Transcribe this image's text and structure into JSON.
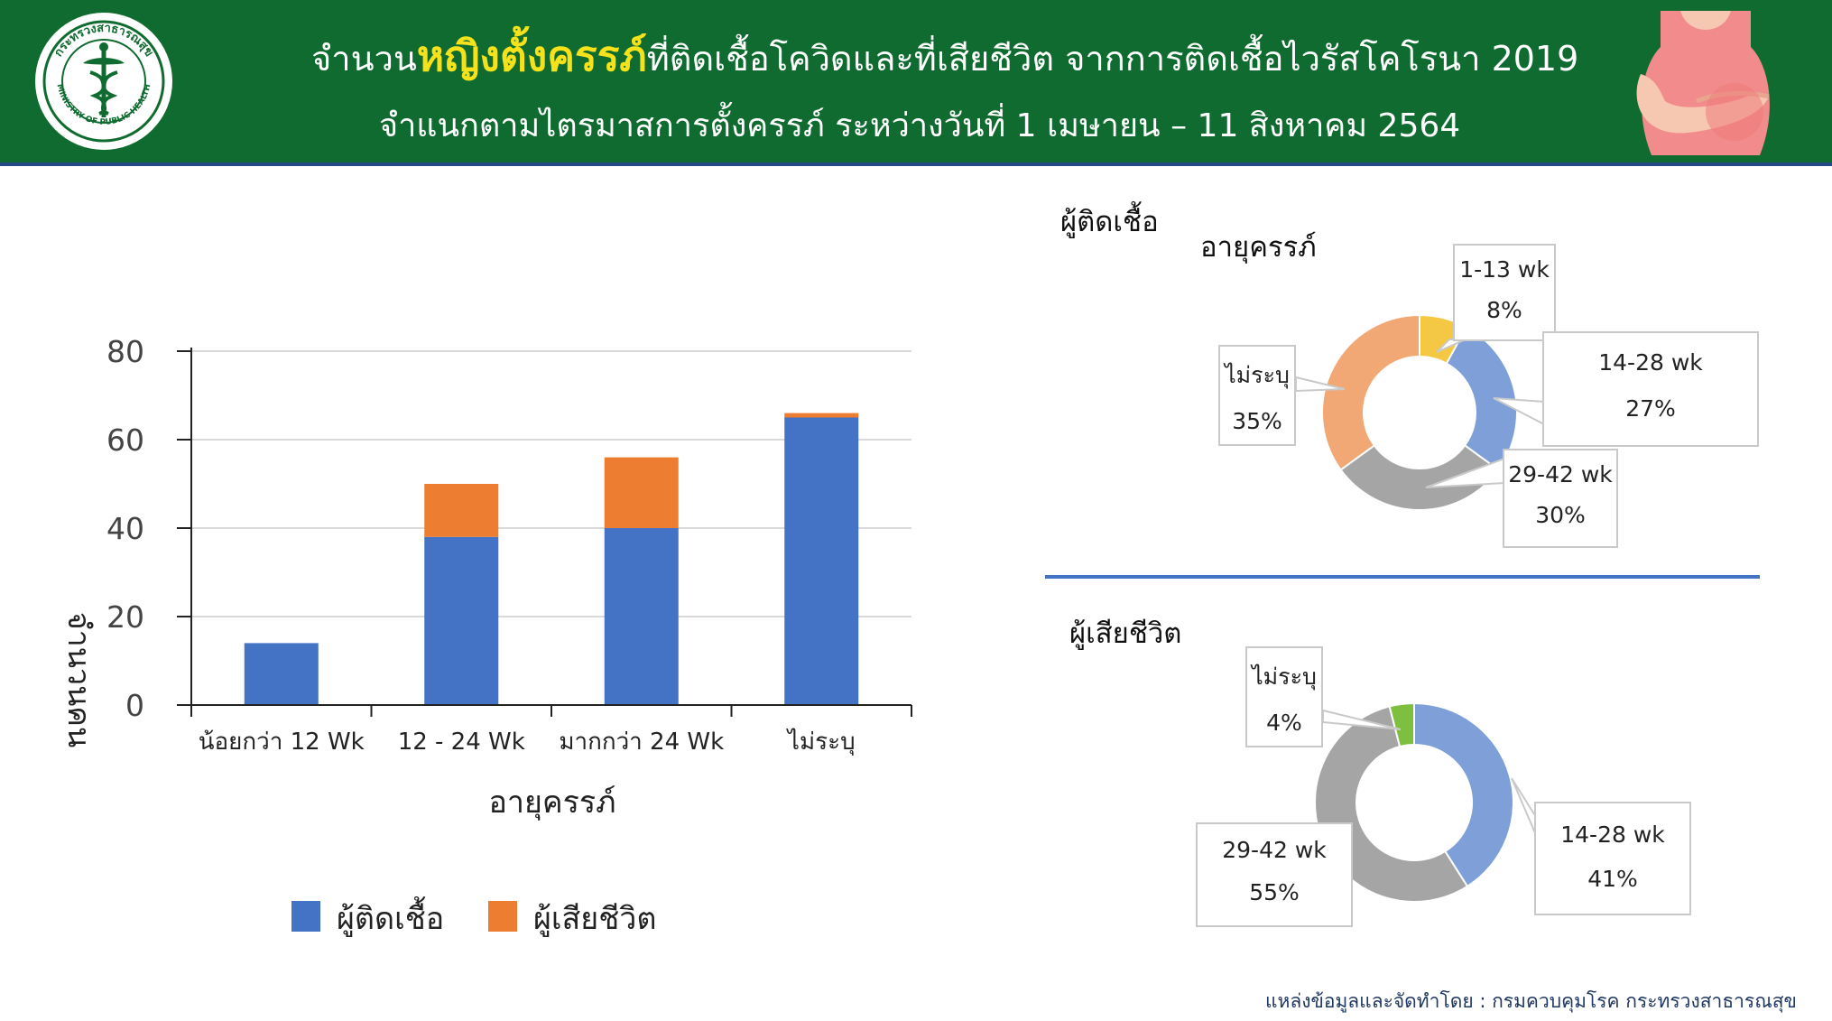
{
  "header": {
    "title_prefix": "จำนวน",
    "title_highlight": "หญิงตั้งครรภ์",
    "title_suffix": "ที่ติดเชื้อโควิดและที่เสียชีวิต จากการติดเชื้อไวรัสโคโรนา 2019",
    "subtitle": "จำแนกตามไตรมาสการตั้งครรภ์ ระหว่างวันที่ 1 เมษายน – 11 สิงหาคม 2564",
    "logo_text": "กระทรวงสาธารณสุข",
    "logo_text_en": "MINISTRY OF PUBLIC HEALTH"
  },
  "colors": {
    "header_bg": "#0f6b2f",
    "highlight": "#f5e21a",
    "infected": "#4472c4",
    "deaths": "#ed7d31",
    "d_1_13": "#f4c842",
    "d_14_28": "#7f9fd8",
    "d_29_42": "#a5a5a5",
    "d_unknown": "#f2a875",
    "d_unknown_death": "#7fbf3f"
  },
  "chart_data": [
    {
      "type": "bar",
      "stacked": true,
      "categories": [
        "น้อยกว่า 12 Wk",
        "12 - 24 Wk",
        "มากกว่า 24 Wk",
        "ไม่ระบุ"
      ],
      "series": [
        {
          "name": "ผู้ติดเชื้อ",
          "values": [
            14,
            38,
            40,
            65
          ]
        },
        {
          "name": "ผู้เสียชีวิต",
          "values": [
            0,
            12,
            16,
            1
          ]
        }
      ],
      "xlabel": "อายุครรภ์",
      "ylabel": "จำนวนคน",
      "ylim": [
        0,
        80
      ],
      "yticks": [
        0,
        20,
        40,
        60,
        80
      ],
      "grid": true,
      "legend": "bottom"
    },
    {
      "type": "pie",
      "donut": true,
      "title": "ผู้ติดเชื้อ",
      "subtitle": "อายุครรภ์",
      "labels": [
        "1-13 wk",
        "14-28 wk",
        "29-42 wk",
        "ไม่ระบุ"
      ],
      "values": [
        8,
        27,
        30,
        35
      ],
      "display": [
        "8%",
        "27%",
        "30%",
        "35%"
      ]
    },
    {
      "type": "pie",
      "donut": true,
      "title": "ผู้เสียชีวิต",
      "labels": [
        "14-28 wk",
        "29-42 wk",
        "ไม่ระบุ"
      ],
      "values": [
        41,
        55,
        4
      ],
      "display": [
        "41%",
        "55%",
        "4%"
      ]
    }
  ],
  "footer": {
    "source": "แหล่งข้อมูลและจัดทำโดย : กรมควบคุมโรค กระทรวงสาธารณสุข"
  }
}
